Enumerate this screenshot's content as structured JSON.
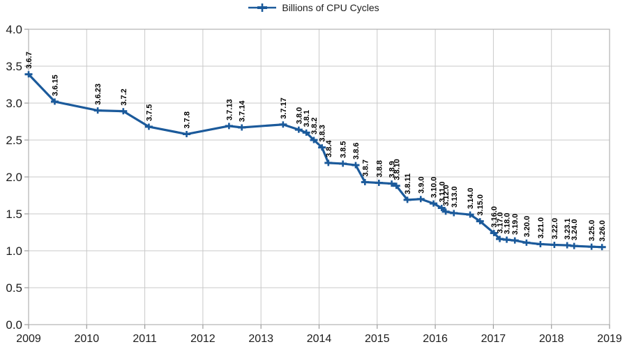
{
  "colors": {
    "line": "#1b5a9b",
    "grid": "#c9c9c9",
    "plot_border": "#b2b2b2",
    "tick": "#9b9b9b",
    "axis_text": "#1c1c1c",
    "point_label": "#000000",
    "background": "#ffffff"
  },
  "chart_data": {
    "type": "line",
    "title": "",
    "legend": {
      "label": "Billions of CPU Cycles",
      "position": "top-center",
      "marker": "plus-on-line"
    },
    "x_axis": {
      "min": 2009,
      "max": 2019,
      "ticks": [
        2009,
        2010,
        2011,
        2012,
        2013,
        2014,
        2015,
        2016,
        2017,
        2018,
        2019
      ],
      "tick_labels": [
        "2009",
        "2010",
        "2011",
        "2012",
        "2013",
        "2014",
        "2015",
        "2016",
        "2017",
        "2018",
        "2019"
      ]
    },
    "y_axis": {
      "min": 0.0,
      "max": 4.0,
      "ticks": [
        0.0,
        0.5,
        1.0,
        1.5,
        2.0,
        2.5,
        3.0,
        3.5,
        4.0
      ],
      "tick_labels": [
        "0.0",
        "0.5",
        "1.0",
        "1.5",
        "2.0",
        "2.5",
        "3.0",
        "3.5",
        "4.0"
      ]
    },
    "grid": {
      "horizontal": true,
      "vertical": true
    },
    "series": [
      {
        "name": "Billions of CPU Cycles",
        "marker": "plus",
        "label_rotation_deg": -90,
        "points": [
          {
            "label": "3.6.7",
            "x": 2009.0,
            "y": 3.39
          },
          {
            "label": "3.6.15",
            "x": 2009.45,
            "y": 3.02
          },
          {
            "label": "3.6.23",
            "x": 2010.19,
            "y": 2.9
          },
          {
            "label": "3.7.2",
            "x": 2010.63,
            "y": 2.89
          },
          {
            "label": "3.7.5",
            "x": 2011.07,
            "y": 2.68
          },
          {
            "label": "3.7.8",
            "x": 2011.72,
            "y": 2.58
          },
          {
            "label": "3.7.13",
            "x": 2012.45,
            "y": 2.69
          },
          {
            "label": "3.7.14",
            "x": 2012.67,
            "y": 2.67
          },
          {
            "label": "3.7.17",
            "x": 2013.38,
            "y": 2.71
          },
          {
            "label": "3.8.0",
            "x": 2013.65,
            "y": 2.64
          },
          {
            "label": "3.8.1",
            "x": 2013.78,
            "y": 2.6
          },
          {
            "label": "3.8.2",
            "x": 2013.91,
            "y": 2.5
          },
          {
            "label": "3.8.3",
            "x": 2014.05,
            "y": 2.4
          },
          {
            "label": "3.8.4",
            "x": 2014.16,
            "y": 2.19
          },
          {
            "label": "3.8.5",
            "x": 2014.41,
            "y": 2.18
          },
          {
            "label": "3.8.6",
            "x": 2014.63,
            "y": 2.16
          },
          {
            "label": "3.8.7",
            "x": 2014.79,
            "y": 1.93
          },
          {
            "label": "3.8.8",
            "x": 2015.03,
            "y": 1.92
          },
          {
            "label": "3.8.9",
            "x": 2015.25,
            "y": 1.91
          },
          {
            "label": "3.8.10",
            "x": 2015.33,
            "y": 1.88
          },
          {
            "label": "3.8.11",
            "x": 2015.52,
            "y": 1.69
          },
          {
            "label": "3.9.0",
            "x": 2015.75,
            "y": 1.7
          },
          {
            "label": "3.10.0",
            "x": 2015.97,
            "y": 1.64
          },
          {
            "label": "3.11.0",
            "x": 2016.11,
            "y": 1.58
          },
          {
            "label": "3.12.0",
            "x": 2016.18,
            "y": 1.53
          },
          {
            "label": "3.13.0",
            "x": 2016.32,
            "y": 1.51
          },
          {
            "label": "3.14.0",
            "x": 2016.6,
            "y": 1.49
          },
          {
            "label": "3.15.0",
            "x": 2016.77,
            "y": 1.4
          },
          {
            "label": "3.16.0",
            "x": 2017.01,
            "y": 1.24
          },
          {
            "label": "3.17.0",
            "x": 2017.11,
            "y": 1.16
          },
          {
            "label": "3.18.0",
            "x": 2017.23,
            "y": 1.15
          },
          {
            "label": "3.19.0",
            "x": 2017.37,
            "y": 1.14
          },
          {
            "label": "3.20.0",
            "x": 2017.57,
            "y": 1.11
          },
          {
            "label": "3.21.0",
            "x": 2017.81,
            "y": 1.09
          },
          {
            "label": "3.22.0",
            "x": 2018.05,
            "y": 1.08
          },
          {
            "label": "3.23.1",
            "x": 2018.27,
            "y": 1.075
          },
          {
            "label": "3.24.0",
            "x": 2018.39,
            "y": 1.065
          },
          {
            "label": "3.25.0",
            "x": 2018.69,
            "y": 1.055
          },
          {
            "label": "3.26.0",
            "x": 2018.87,
            "y": 1.05
          }
        ]
      }
    ]
  }
}
